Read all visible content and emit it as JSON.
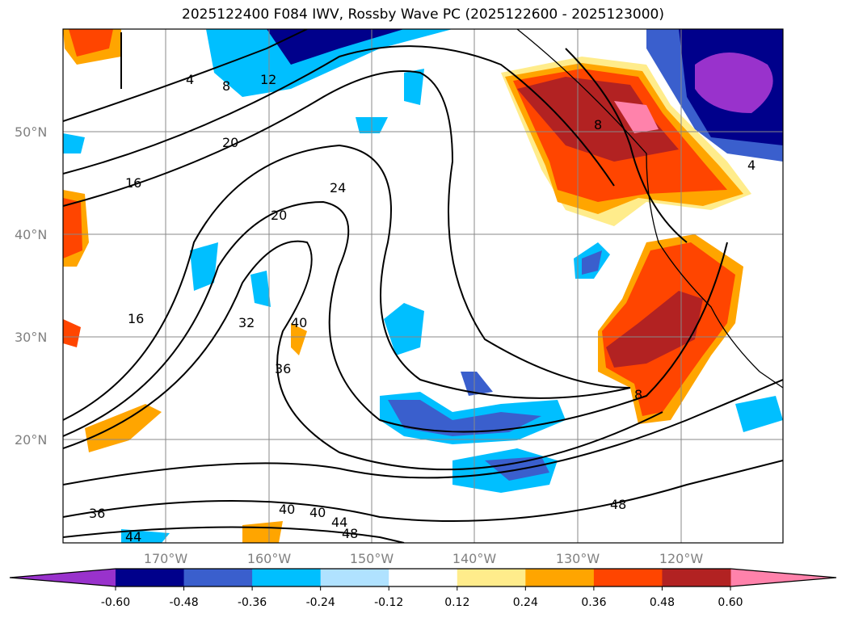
{
  "title": "2025122400 F084 IWV, Rossby Wave PC (2025122600 - 2025123000)",
  "lat_labels": [
    "50°N",
    "40°N",
    "30°N",
    "20°N"
  ],
  "lon_labels": [
    "170°W",
    "160°W",
    "150°W",
    "140°W",
    "130°W",
    "120°W"
  ],
  "colorbar": {
    "ticks": [
      "-0.60",
      "-0.48",
      "-0.36",
      "-0.24",
      "-0.12",
      "0.12",
      "0.24",
      "0.36",
      "0.48",
      "0.60"
    ],
    "colors": [
      "#9932CC",
      "#00008B",
      "#3A5FCD",
      "#00BFFF",
      "#B0E2FF",
      "#FFFFFF",
      "#FFEC8B",
      "#FFA500",
      "#FF4500",
      "#B22222",
      "#FF82AB"
    ]
  },
  "contour_labels": [
    {
      "text": "4"
    },
    {
      "text": "8"
    },
    {
      "text": "12"
    },
    {
      "text": "20"
    },
    {
      "text": "16"
    },
    {
      "text": "24"
    },
    {
      "text": "20"
    },
    {
      "text": "16"
    },
    {
      "text": "32"
    },
    {
      "text": "40"
    },
    {
      "text": "36"
    },
    {
      "text": "8"
    },
    {
      "text": "4"
    },
    {
      "text": "8"
    },
    {
      "text": "48"
    },
    {
      "text": "36"
    },
    {
      "text": "44"
    },
    {
      "text": "40"
    },
    {
      "text": "40"
    },
    {
      "text": "44"
    },
    {
      "text": "48"
    }
  ]
}
